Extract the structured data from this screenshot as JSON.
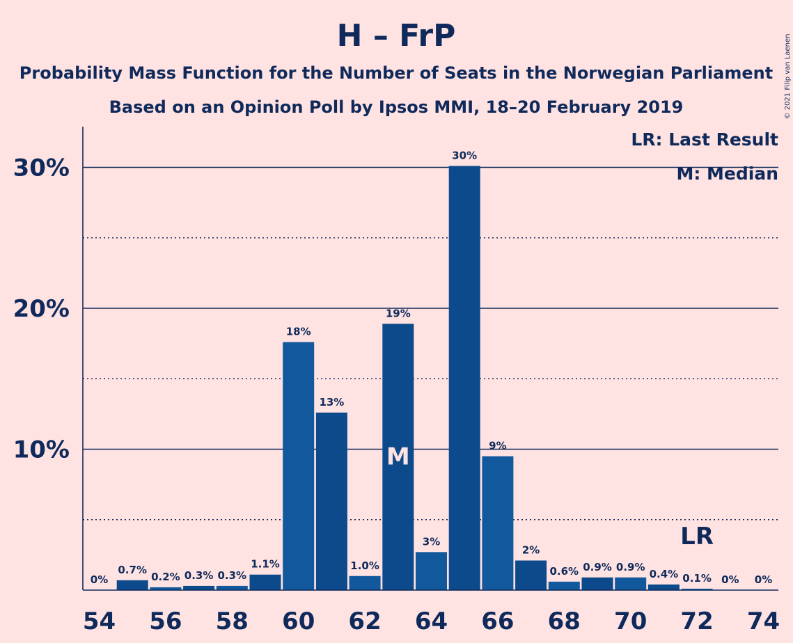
{
  "chart_data": {
    "type": "bar",
    "title": "H – FrP",
    "subtitle_line1": "Probability Mass Function for the Number of Seats in the Norwegian Parliament",
    "subtitle_line2": "Based on an Opinion Poll by Ipsos MMI, 18–20 February 2019",
    "credit": "© 2021 Filip van Laenen",
    "xlabel": "",
    "ylabel": "",
    "x": [
      54,
      55,
      56,
      57,
      58,
      59,
      60,
      61,
      62,
      63,
      64,
      65,
      66,
      67,
      68,
      69,
      70,
      71,
      72,
      73,
      74
    ],
    "values": [
      0,
      0.7,
      0.2,
      0.3,
      0.3,
      1.1,
      17.6,
      12.6,
      1.0,
      18.9,
      2.7,
      30.1,
      9.5,
      2.1,
      0.6,
      0.9,
      0.9,
      0.4,
      0.1,
      0,
      0
    ],
    "data_labels": [
      "0%",
      "0.7%",
      "0.2%",
      "0.3%",
      "0.3%",
      "1.1%",
      "18%",
      "13%",
      "1.0%",
      "19%",
      "3%",
      "30%",
      "9%",
      "2%",
      "0.6%",
      "0.9%",
      "0.9%",
      "0.4%",
      "0.1%",
      "0%",
      "0%"
    ],
    "x_ticks": [
      54,
      56,
      58,
      60,
      62,
      64,
      66,
      68,
      70,
      72,
      74
    ],
    "y_ticks": [
      10,
      20,
      30
    ],
    "y_tick_labels": [
      "10%",
      "20%",
      "30%"
    ],
    "ylim": [
      0,
      33
    ],
    "grid": "solid at 10% steps, dotted at 5% steps",
    "median_seat": 63,
    "median_marker": "M",
    "last_result_seat": 72,
    "last_result_marker": "LR",
    "legend": {
      "position": "top-right",
      "items": [
        "LR: Last Result",
        "M: Median"
      ]
    },
    "colors": {
      "background": "#ffe3e3",
      "bar_dark": "#0c4a8c",
      "bar_light": "#12589c",
      "text": "#0f2a5a",
      "marker_text": "#ffe3e3"
    }
  }
}
